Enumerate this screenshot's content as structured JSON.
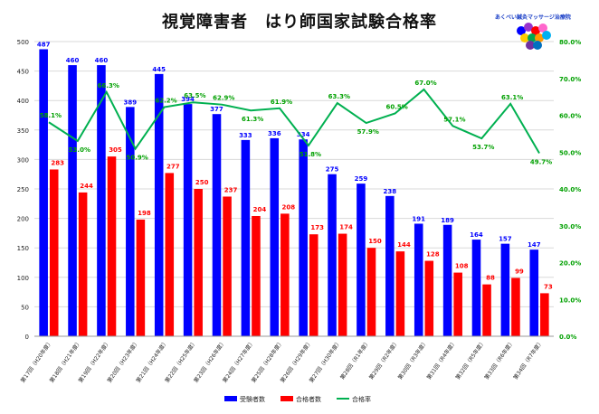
{
  "chart_data": {
    "type": "bar",
    "title": "視覚障害者　はり師国家試験合格率",
    "categories": [
      "第17回（H20年度）",
      "第18回（H21年度）",
      "第19回（H22年度）",
      "第20回（H23年度）",
      "第21回（H24年度）",
      "第22回（H25年度）",
      "第23回（H26年度）",
      "第24回（H27年度）",
      "第25回（H28年度）",
      "第26回（H29年度）",
      "第27回（H30年度）",
      "第28回（R1年度）",
      "第29回（R2年度）",
      "第30回（R3年度）",
      "第31回（R4年度）",
      "第32回（R5年度）",
      "第33回（R6年度）",
      "第34回（R7年度）"
    ],
    "series": [
      {
        "name": "受験者数",
        "type": "bar",
        "axis": "left",
        "color": "#0000ff",
        "values": [
          487,
          460,
          460,
          389,
          445,
          394,
          377,
          333,
          336,
          334,
          275,
          259,
          238,
          191,
          189,
          164,
          157,
          147
        ]
      },
      {
        "name": "合格者数",
        "type": "bar",
        "axis": "left",
        "color": "#ff0000",
        "values": [
          283,
          244,
          305,
          198,
          277,
          250,
          237,
          204,
          208,
          173,
          174,
          150,
          144,
          128,
          108,
          88,
          99,
          73
        ]
      },
      {
        "name": "合格率",
        "type": "line",
        "axis": "right",
        "color": "#00b050",
        "values": [
          58.1,
          53.0,
          66.3,
          50.9,
          62.2,
          63.5,
          62.9,
          61.3,
          61.9,
          51.8,
          63.3,
          57.9,
          60.5,
          67.0,
          57.1,
          53.7,
          63.1,
          49.7
        ],
        "labels": [
          "58.1%",
          "53.0%",
          "66.3%",
          "50.9%",
          "62.2%",
          "63.5%",
          "62.9%",
          "61.3%",
          "61.9%",
          "51.8%",
          "63.3%",
          "57.9%",
          "60.5%",
          "67.0%",
          "57.1%",
          "53.7%",
          "63.1%",
          "49.7%"
        ]
      }
    ],
    "y_left": {
      "min": 0,
      "max": 500,
      "ticks": [
        "0",
        "50",
        "100",
        "150",
        "200",
        "250",
        "300",
        "350",
        "400",
        "450",
        "500"
      ]
    },
    "y_right": {
      "min": 0,
      "max": 80,
      "ticks": [
        "0.0%",
        "10.0%",
        "20.0%",
        "30.0%",
        "40.0%",
        "50.0%",
        "60.0%",
        "70.0%",
        "80.0%"
      ]
    },
    "grid": true,
    "legend_position": "bottom"
  },
  "logo": {
    "text": "あくべい鍼灸マッサージ治療院"
  }
}
